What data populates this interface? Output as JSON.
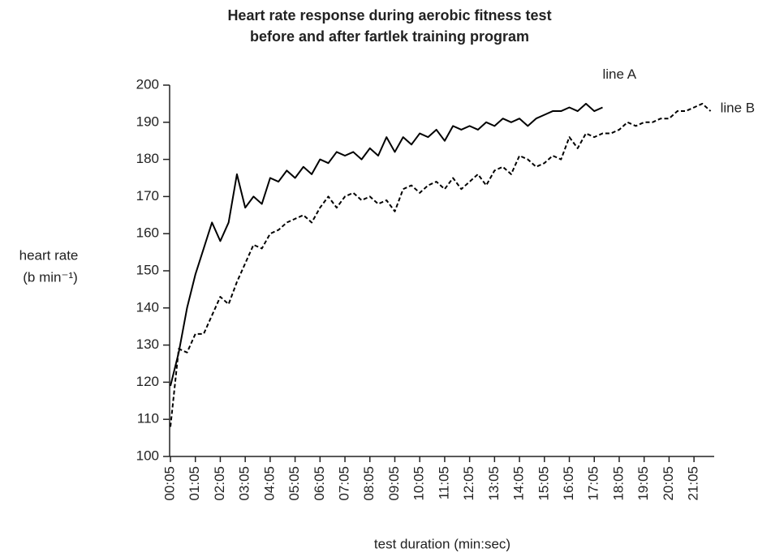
{
  "chart_data": {
    "type": "line",
    "title": [
      "Heart rate response during aerobic fitness test",
      "before and after fartlek training program"
    ],
    "x_label": "test duration (min:sec)",
    "y_label": [
      "heart rate",
      "(b min⁻¹)"
    ],
    "categories": [
      "00:05",
      null,
      null,
      "01:05",
      null,
      null,
      "02:05",
      null,
      null,
      "03:05",
      null,
      null,
      "04:05",
      null,
      null,
      "05:05",
      null,
      null,
      "06:05",
      null,
      null,
      "07:05",
      null,
      null,
      "08:05",
      null,
      null,
      "09:05",
      null,
      null,
      "10:05",
      null,
      null,
      "11:05",
      null,
      null,
      "12:05",
      null,
      null,
      "13:05",
      null,
      null,
      "14:05",
      null,
      null,
      "15:05",
      null,
      null,
      "16:05",
      null,
      null,
      "17:05",
      null,
      null,
      "18:05",
      null,
      null,
      "19:05",
      null,
      null,
      "20:05",
      null,
      null,
      "21:05",
      null,
      null
    ],
    "series": [
      {
        "name": "line A",
        "color": "#000000",
        "dash": "solid",
        "values": [
          119,
          128,
          140,
          149,
          156,
          163,
          158,
          163,
          176,
          167,
          170,
          168,
          175,
          174,
          177,
          175,
          178,
          176,
          180,
          179,
          182,
          181,
          182,
          180,
          183,
          181,
          186,
          182,
          186,
          184,
          187,
          186,
          188,
          185,
          189,
          188,
          189,
          188,
          190,
          189,
          191,
          190,
          191,
          189,
          191,
          192,
          193,
          193,
          194,
          193,
          195,
          193,
          194,
          null,
          null,
          null,
          null,
          null,
          null,
          null,
          null,
          null,
          null,
          null,
          null,
          null
        ]
      },
      {
        "name": "line B",
        "color": "#000000",
        "dash": "dashed",
        "values": [
          108,
          129,
          128,
          133,
          133,
          138,
          143,
          141,
          147,
          152,
          157,
          156,
          160,
          161,
          163,
          164,
          165,
          163,
          167,
          170,
          167,
          170,
          171,
          169,
          170,
          168,
          169,
          166,
          172,
          173,
          171,
          173,
          174,
          172,
          175,
          172,
          174,
          176,
          173,
          177,
          178,
          176,
          181,
          180,
          178,
          179,
          181,
          180,
          186,
          183,
          187,
          186,
          187,
          187,
          188,
          190,
          189,
          190,
          190,
          191,
          191,
          193,
          193,
          194,
          195,
          193
        ]
      }
    ],
    "ylim": [
      100,
      200
    ],
    "yticks": [
      100,
      110,
      120,
      130,
      140,
      150,
      160,
      170,
      180,
      190,
      200
    ],
    "grid": false
  }
}
